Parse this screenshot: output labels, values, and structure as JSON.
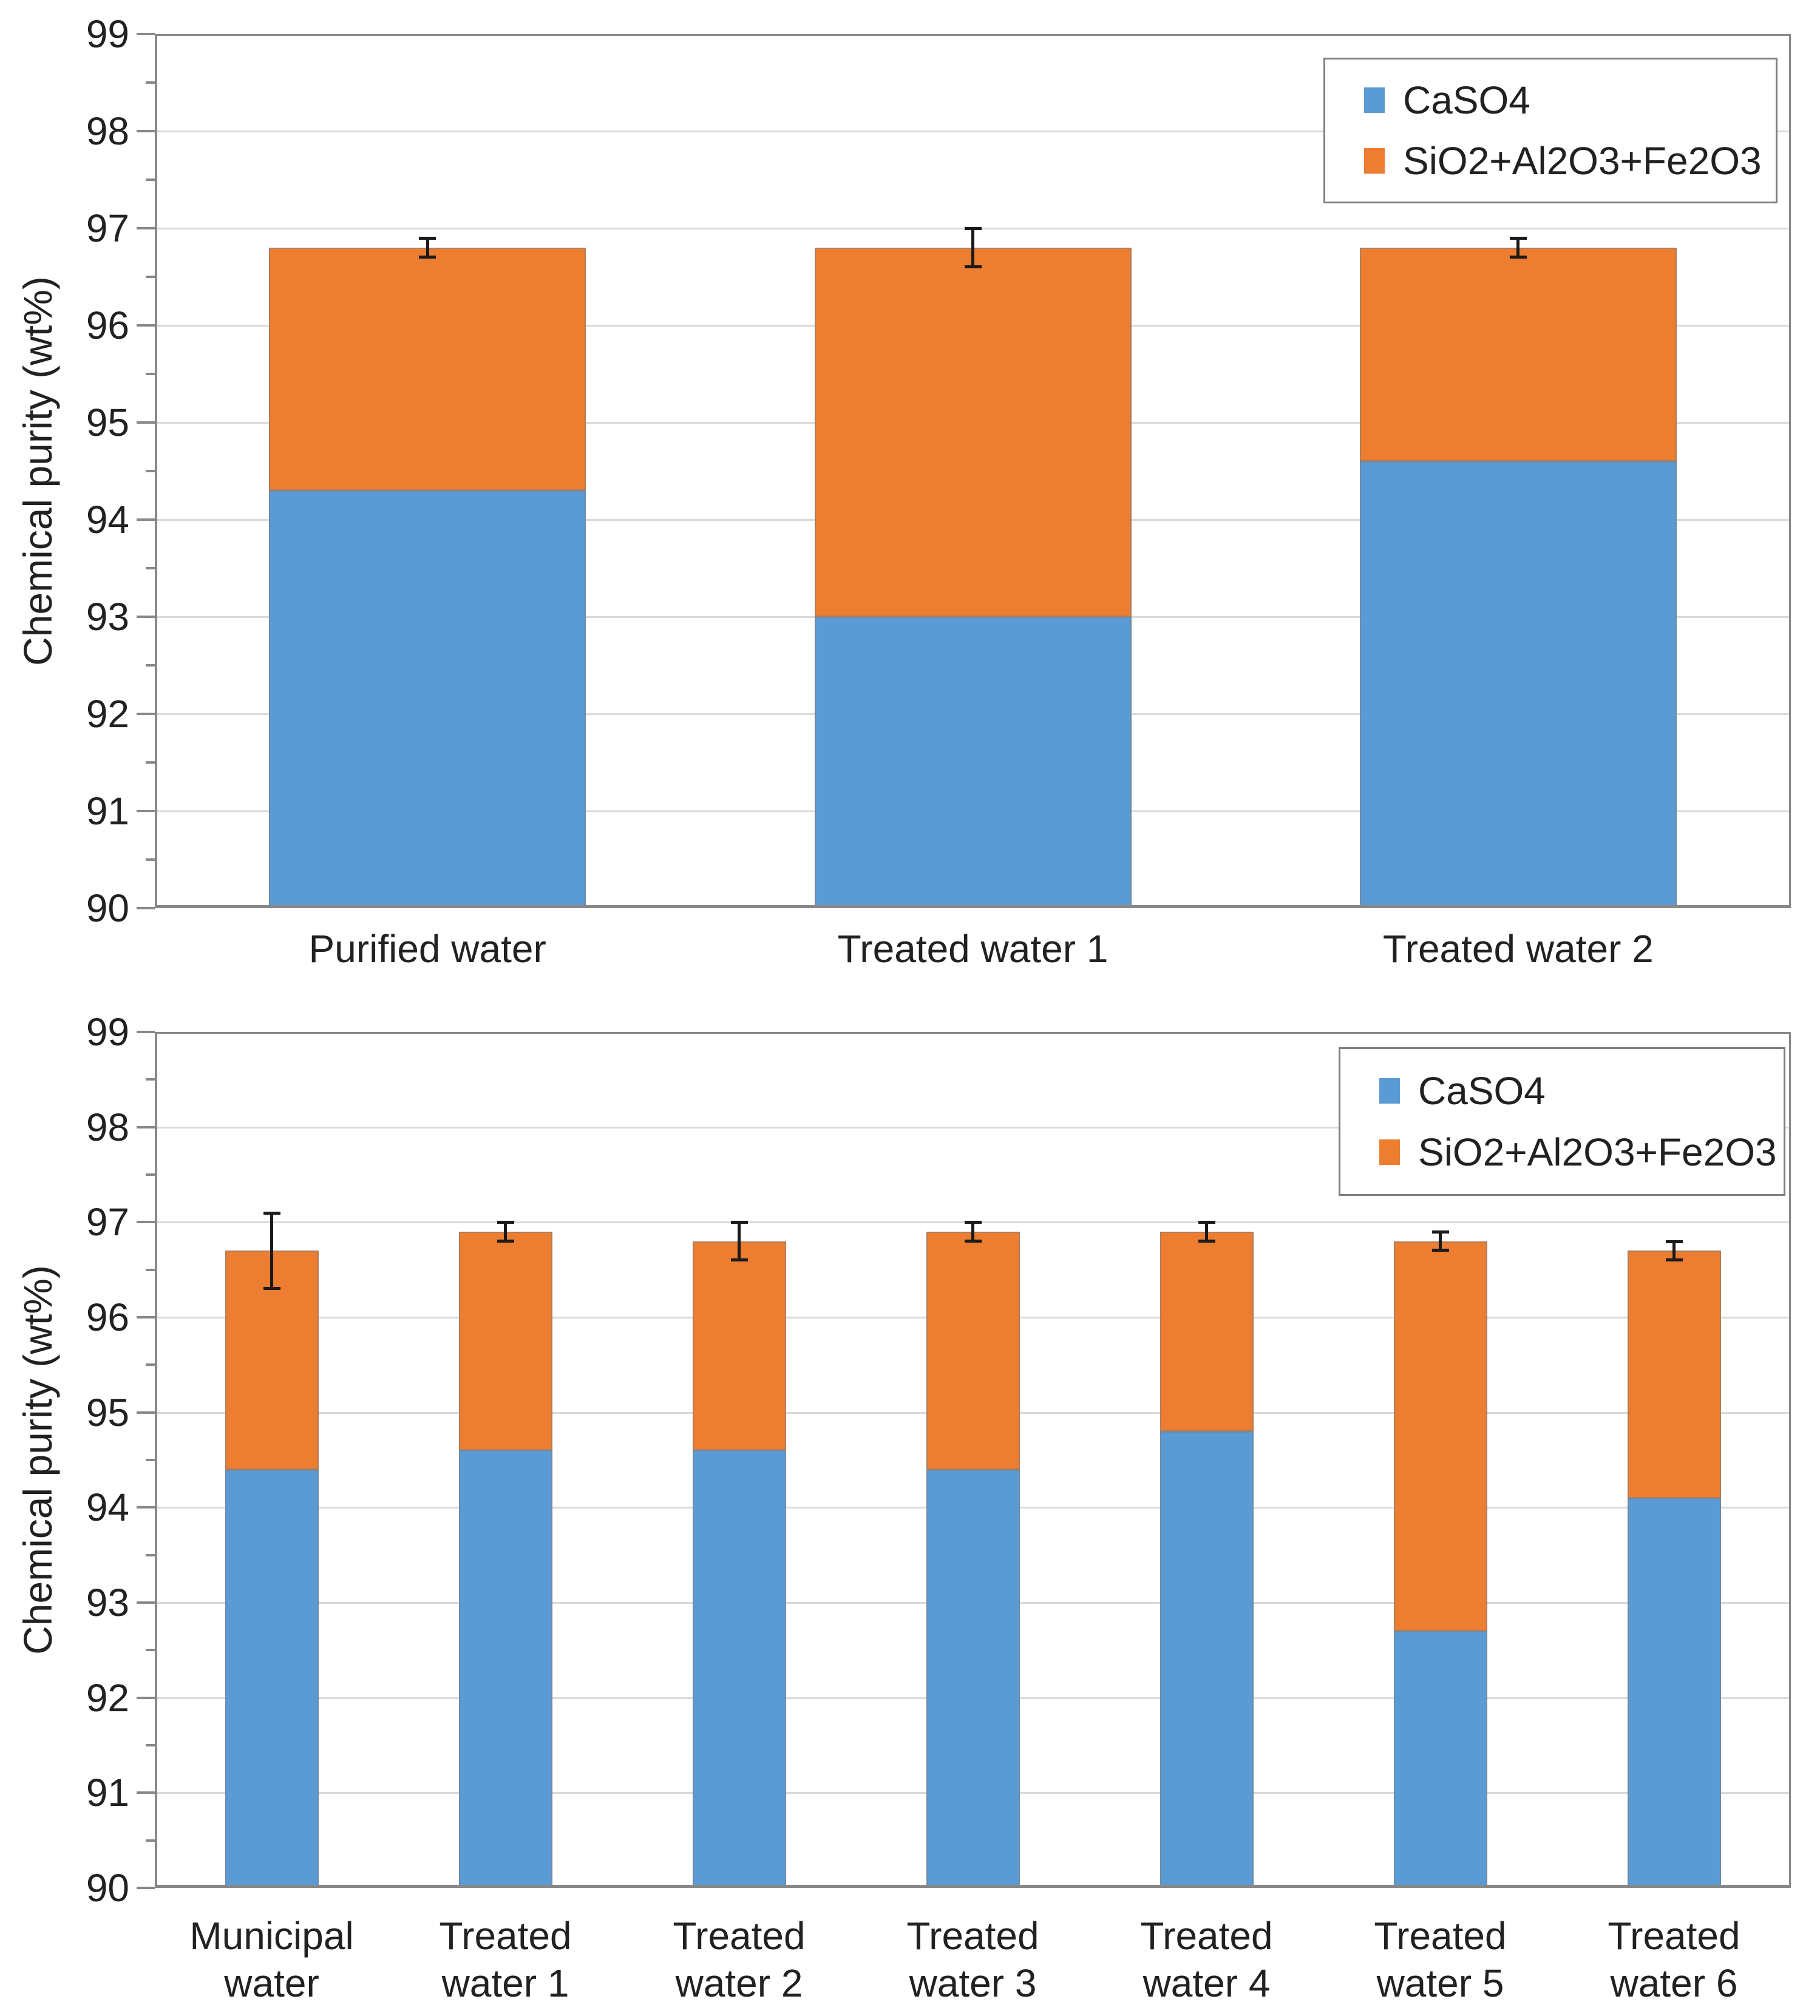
{
  "colors": {
    "caso4_blue": "#5B9BD5",
    "sio2_orange": "#ED7D31",
    "gridline": "#D9D9D9",
    "axis_gray": "#888888",
    "error_bar_black": "#1A1A1A",
    "text": "#212121",
    "legend_border": "#7F7F7F",
    "background": "#FFFFFF"
  },
  "chart_data": [
    {
      "type": "bar",
      "stacked": true,
      "title": "",
      "xlabel": "",
      "ylabel": "Chemical purity (wt%)",
      "ylim": [
        90,
        99
      ],
      "yticks": [
        90,
        91,
        92,
        93,
        94,
        95,
        96,
        97,
        98,
        99
      ],
      "minor_tick_step": 0.5,
      "grid": true,
      "legend_position": "top-right",
      "legend_labels": [
        "CaSO4",
        "SiO2+Al2O3+Fe2O3"
      ],
      "categories": [
        "Purified water",
        "Treated water 1",
        "Treated water 2"
      ],
      "series": [
        {
          "name": "CaSO4",
          "color": "#5B9BD5",
          "values": [
            94.3,
            93.0,
            94.6
          ]
        },
        {
          "name": "SiO2+Al2O3+Fe2O3",
          "color": "#ED7D31",
          "values": [
            2.5,
            3.8,
            2.2
          ]
        }
      ],
      "stack_totals": [
        96.8,
        96.8,
        96.8
      ],
      "error_bars_plus_minus": [
        0.1,
        0.2,
        0.1
      ]
    },
    {
      "type": "bar",
      "stacked": true,
      "title": "",
      "xlabel": "",
      "ylabel": "Chemical purity (wt%)",
      "ylim": [
        90,
        99
      ],
      "yticks": [
        90,
        91,
        92,
        93,
        94,
        95,
        96,
        97,
        98,
        99
      ],
      "minor_tick_step": 0.5,
      "grid": true,
      "legend_position": "top-right",
      "legend_labels": [
        "CaSO4",
        "SiO2+Al2O3+Fe2O3"
      ],
      "categories": [
        "Municipal\nwater",
        "Treated\nwater 1",
        "Treated\nwater 2",
        "Treated\nwater 3",
        "Treated\nwater 4",
        "Treated\nwater 5",
        "Treated\nwater 6"
      ],
      "series": [
        {
          "name": "CaSO4",
          "color": "#5B9BD5",
          "values": [
            94.4,
            94.6,
            94.6,
            94.4,
            94.8,
            92.7,
            94.1
          ]
        },
        {
          "name": "SiO2+Al2O3+Fe2O3",
          "color": "#ED7D31",
          "values": [
            2.3,
            2.3,
            2.2,
            2.5,
            2.1,
            4.1,
            2.6
          ]
        }
      ],
      "stack_totals": [
        96.7,
        96.9,
        96.8,
        96.9,
        96.9,
        96.8,
        96.7
      ],
      "error_bars_plus_minus": [
        0.4,
        0.1,
        0.2,
        0.1,
        0.1,
        0.1,
        0.1
      ]
    }
  ]
}
